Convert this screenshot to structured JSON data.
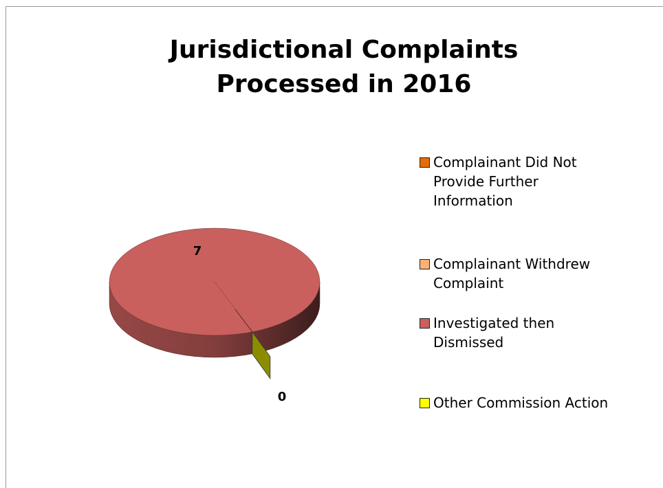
{
  "chart_data": {
    "type": "pie",
    "title": "Jurisdictional Complaints Processed in 2016",
    "categories": [
      "Complainant Did Not Provide Further Information",
      "Complainant Withdrew Complaint",
      "Investigated then Dismissed",
      "Other Commission Action"
    ],
    "values": [
      0,
      0,
      7,
      0
    ],
    "value_labels": [
      null,
      null,
      "7",
      "0"
    ],
    "colors": [
      "#e46c0a",
      "#f9b17a",
      "#c9605d",
      "#ffff00"
    ],
    "legend": "right",
    "three_d": true
  }
}
